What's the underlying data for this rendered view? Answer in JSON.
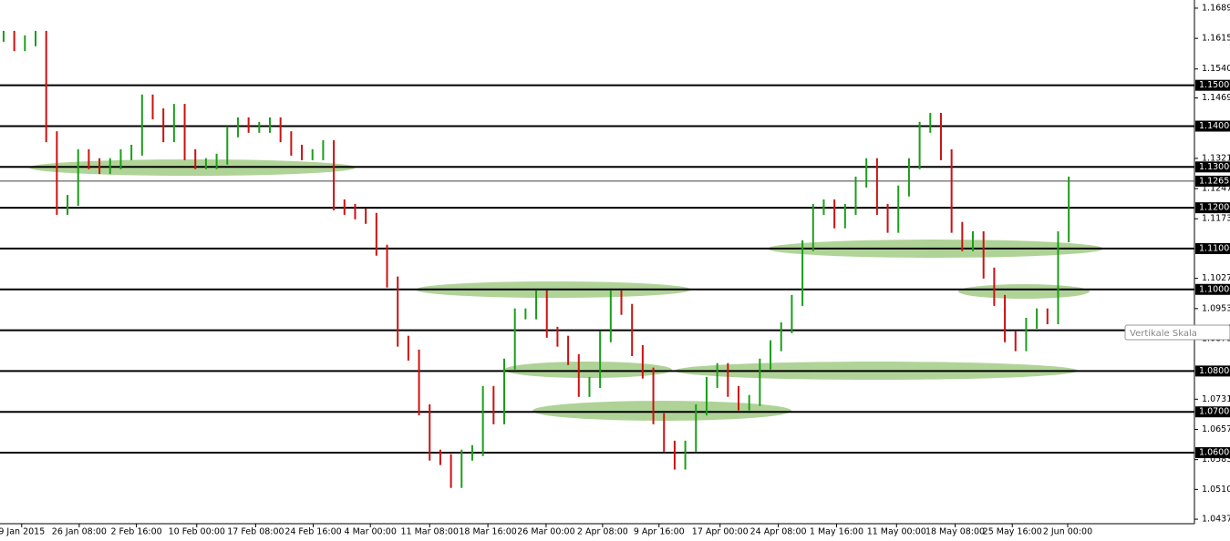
{
  "chart_data": {
    "type": "bar",
    "x": [
      0,
      3,
      6,
      9,
      12,
      15,
      18,
      21,
      24,
      27,
      30,
      33,
      36,
      39,
      42,
      45,
      48,
      51,
      54,
      57,
      60,
      63,
      66,
      69,
      72,
      75,
      78,
      81,
      84,
      87,
      90,
      93,
      96,
      99,
      102,
      105,
      108,
      111,
      114,
      117,
      120,
      123,
      126,
      129,
      132,
      135,
      138,
      141,
      144,
      147,
      150,
      153,
      156,
      159,
      162,
      165,
      168,
      171,
      174,
      177,
      180,
      183,
      186,
      189,
      192,
      195,
      198,
      201,
      204,
      207,
      210,
      213,
      216,
      219,
      222,
      225,
      228,
      231,
      234,
      237,
      240,
      243,
      246,
      249,
      252,
      255,
      258,
      261,
      264,
      267,
      270,
      273,
      276,
      279,
      282,
      285,
      288,
      291,
      294,
      297,
      300
    ],
    "values": [
      1.162,
      1.1597,
      1.1609,
      1.162,
      1.1374,
      1.1196,
      1.1218,
      1.133,
      1.1308,
      1.1296,
      1.1308,
      1.133,
      1.1341,
      1.1464,
      1.143,
      1.1374,
      1.1441,
      1.133,
      1.1308,
      1.1308,
      1.1319,
      1.1386,
      1.1408,
      1.1397,
      1.1397,
      1.1408,
      1.1374,
      1.1341,
      1.133,
      1.133,
      1.1352,
      1.1207,
      1.1196,
      1.1185,
      1.1174,
      1.1096,
      1.1018,
      1.0873,
      1.0839,
      1.0705,
      1.0594,
      1.0583,
      1.0527,
      1.0594,
      1.0605,
      1.075,
      1.0683,
      1.0817,
      1.094,
      1.094,
      1.0984,
      1.0895,
      1.0873,
      1.0828,
      1.075,
      1.0772,
      1.0884,
      1.0984,
      1.0951,
      1.085,
      1.0795,
      1.0683,
      1.0616,
      1.0572,
      1.0616,
      1.0705,
      1.0772,
      1.0806,
      1.075,
      1.0717,
      1.0728,
      1.0817,
      1.0862,
      1.0906,
      1.0973,
      1.1107,
      1.1196,
      1.1207,
      1.1163,
      1.1196,
      1.1263,
      1.1308,
      1.1196,
      1.1152,
      1.1241,
      1.1308,
      1.1397,
      1.1419,
      1.133,
      1.1152,
      1.1107,
      1.1129,
      1.104,
      1.0973,
      1.0884,
      1.0862,
      1.0917,
      1.094,
      1.0928,
      1.1129,
      1.1263
    ],
    "up_color": "#1a9e1a",
    "down_color": "#cc1111",
    "xlim": [
      -0.5,
      335.4
    ],
    "xticks": [
      {
        "value": 5.1,
        "label": "9 Jan 2015"
      },
      {
        "value": 21.3,
        "label": "26 Jan 08:00"
      },
      {
        "value": 37.4,
        "label": "2 Feb 16:00"
      },
      {
        "value": 54.4,
        "label": "10 Feb 00:00"
      },
      {
        "value": 71,
        "label": "17 Feb 08:00"
      },
      {
        "value": 87.2,
        "label": "24 Feb 16:00"
      },
      {
        "value": 103.3,
        "label": "4 Mar 00:00"
      },
      {
        "value": 120,
        "label": "11 Mar 08:00"
      },
      {
        "value": 136.4,
        "label": "18 Mar 16:00"
      },
      {
        "value": 152.8,
        "label": "26 Mar 00:00"
      },
      {
        "value": 168.7,
        "label": "2 Apr 08:00"
      },
      {
        "value": 184.6,
        "label": "9 Apr 16:00"
      },
      {
        "value": 201.8,
        "label": "17 Apr 00:00"
      },
      {
        "value": 218.2,
        "label": "24 Apr 08:00"
      },
      {
        "value": 234.6,
        "label": "1 May 16:00"
      },
      {
        "value": 251.5,
        "label": "11 May 00:00"
      },
      {
        "value": 268,
        "label": "18 May 08:00"
      },
      {
        "value": 284.1,
        "label": "25 May 16:00"
      },
      {
        "value": 299.7,
        "label": "2 Jun 00:00"
      }
    ],
    "ylim": [
      1.0426,
      1.1709
    ],
    "yticks": [
      {
        "value": 1.1689,
        "label": "1.16890"
      },
      {
        "value": 1.1615,
        "label": "1.16150"
      },
      {
        "value": 1.154,
        "label": "1.15400"
      },
      {
        "value": 1.1469,
        "label": "1.14690"
      },
      {
        "value": 1.1321,
        "label": "1.13210"
      },
      {
        "value": 1.1247,
        "label": "1.12470"
      },
      {
        "value": 1.1173,
        "label": "1.11730"
      },
      {
        "value": 1.1027,
        "label": "1.10270"
      },
      {
        "value": 1.0953,
        "label": "1.09530"
      },
      {
        "value": 1.0879,
        "label": "1.08790"
      },
      {
        "value": 1.0731,
        "label": "1.07310"
      },
      {
        "value": 1.0657,
        "label": "1.06570"
      },
      {
        "value": 1.0583,
        "label": "1.05830"
      },
      {
        "value": 1.051,
        "label": "1.05100"
      },
      {
        "value": 1.0437,
        "label": "1.04370"
      }
    ],
    "levels": [
      {
        "value": 1.15,
        "label": "1.15000"
      },
      {
        "value": 1.14,
        "label": "1.14000"
      },
      {
        "value": 1.13,
        "label": "1.13000"
      },
      {
        "value": 1.12,
        "label": "1.12000"
      },
      {
        "value": 1.11,
        "label": "1.11000"
      },
      {
        "value": 1.1,
        "label": "1.10000"
      },
      {
        "value": 1.09,
        "label": "1.09000"
      },
      {
        "value": 1.08,
        "label": "1.08000"
      },
      {
        "value": 1.07,
        "label": "1.07000"
      },
      {
        "value": 1.06,
        "label": "1.06000"
      }
    ],
    "current_price": {
      "value": 1.12652,
      "label": "1.12652"
    },
    "tooltip": "Vertikale Skala"
  }
}
